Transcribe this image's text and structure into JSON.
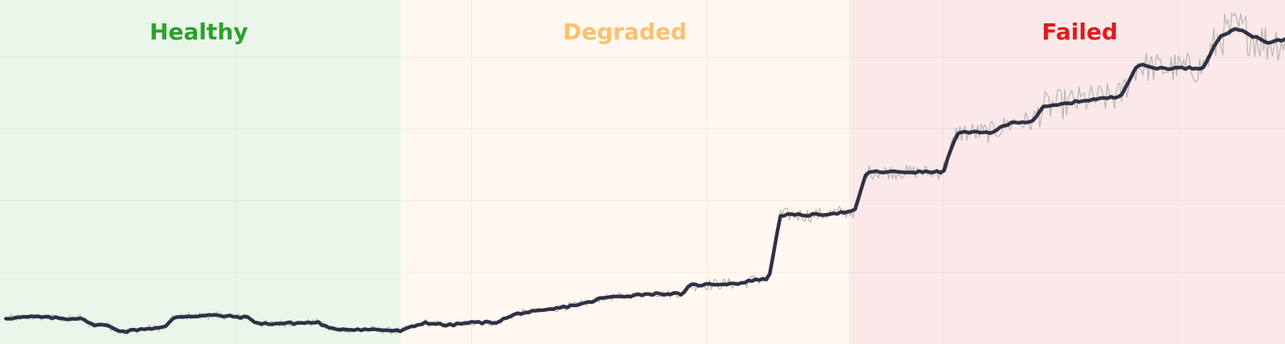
{
  "chart_data": {
    "type": "line",
    "title": "",
    "xlabel": "",
    "ylabel": "",
    "grid": true,
    "axes_visible": false,
    "regions": [
      {
        "label": "Healthy",
        "x_range": [
          0,
          34
        ],
        "fill": "#eaf6ea",
        "text_color": "#2ca02c"
      },
      {
        "label": "Degraded",
        "x_range": [
          34,
          72
        ],
        "fill": "#fff8f0",
        "text_color": "#fdbf6f"
      },
      {
        "label": "Failed",
        "x_range": [
          72,
          109
        ],
        "fill": "#fbe9ea",
        "text_color": "#e31a1c"
      }
    ],
    "xlim": [
      0,
      109
    ],
    "ylim": [
      0,
      4.8
    ],
    "series": [
      {
        "style": "raw",
        "color": "#b3b3b3",
        "noise_amplitude": [
          0.05,
          0.08,
          0.1,
          0.15,
          0.22,
          0.3,
          0.35
        ]
      },
      {
        "style": "smoothed",
        "color": "#1f2235",
        "points": [
          [
            0.5,
            0.36
          ],
          [
            3,
            0.38
          ],
          [
            6,
            0.35
          ],
          [
            7,
            0.37
          ],
          [
            7.5,
            0.28
          ],
          [
            9,
            0.26
          ],
          [
            10.5,
            0.17
          ],
          [
            12,
            0.21
          ],
          [
            14,
            0.23
          ],
          [
            14.8,
            0.38
          ],
          [
            18,
            0.4
          ],
          [
            21,
            0.37
          ],
          [
            22,
            0.28
          ],
          [
            27,
            0.3
          ],
          [
            28,
            0.21
          ],
          [
            32,
            0.2
          ],
          [
            34,
            0.18
          ],
          [
            36,
            0.3
          ],
          [
            38,
            0.26
          ],
          [
            40,
            0.3
          ],
          [
            42,
            0.3
          ],
          [
            44,
            0.43
          ],
          [
            46,
            0.46
          ],
          [
            50,
            0.58
          ],
          [
            51,
            0.64
          ],
          [
            55,
            0.7
          ],
          [
            58,
            0.7
          ],
          [
            58.5,
            0.82
          ],
          [
            63,
            0.85
          ],
          [
            64,
            0.9
          ],
          [
            65.2,
            0.9
          ],
          [
            66.2,
            1.8
          ],
          [
            69,
            1.8
          ],
          [
            72.5,
            1.85
          ],
          [
            73.5,
            2.4
          ],
          [
            76,
            2.4
          ],
          [
            78,
            2.4
          ],
          [
            80,
            2.4
          ],
          [
            81.2,
            2.95
          ],
          [
            84,
            2.95
          ],
          [
            86,
            3.1
          ],
          [
            87.5,
            3.1
          ],
          [
            88.5,
            3.3
          ],
          [
            92,
            3.4
          ],
          [
            95,
            3.45
          ],
          [
            96.5,
            3.9
          ],
          [
            98,
            3.85
          ],
          [
            102,
            3.85
          ],
          [
            103.5,
            4.3
          ],
          [
            105,
            4.4
          ],
          [
            107.5,
            4.2
          ],
          [
            109,
            4.25
          ]
        ]
      }
    ]
  }
}
